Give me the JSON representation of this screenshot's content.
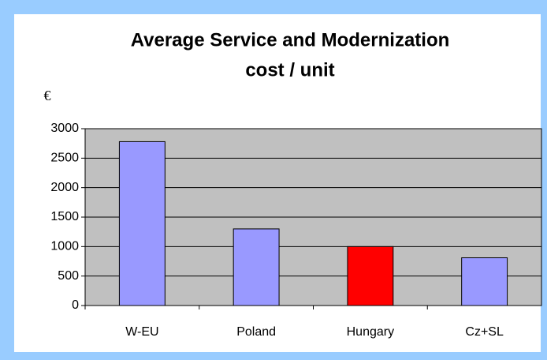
{
  "chart_data": {
    "type": "bar",
    "title": [
      "Average Service and Modernization",
      "cost / unit"
    ],
    "y_label": "€",
    "categories": [
      "W-EU",
      "Poland",
      "Hungary",
      "Cz+SL"
    ],
    "values": [
      2780,
      1300,
      1000,
      810
    ],
    "colors": [
      "#9999ff",
      "#9999ff",
      "#ff0000",
      "#9999ff"
    ],
    "ylim": [
      0,
      3000
    ],
    "yticks": [
      0,
      500,
      1000,
      1500,
      2000,
      2500,
      3000
    ],
    "grid": true
  }
}
